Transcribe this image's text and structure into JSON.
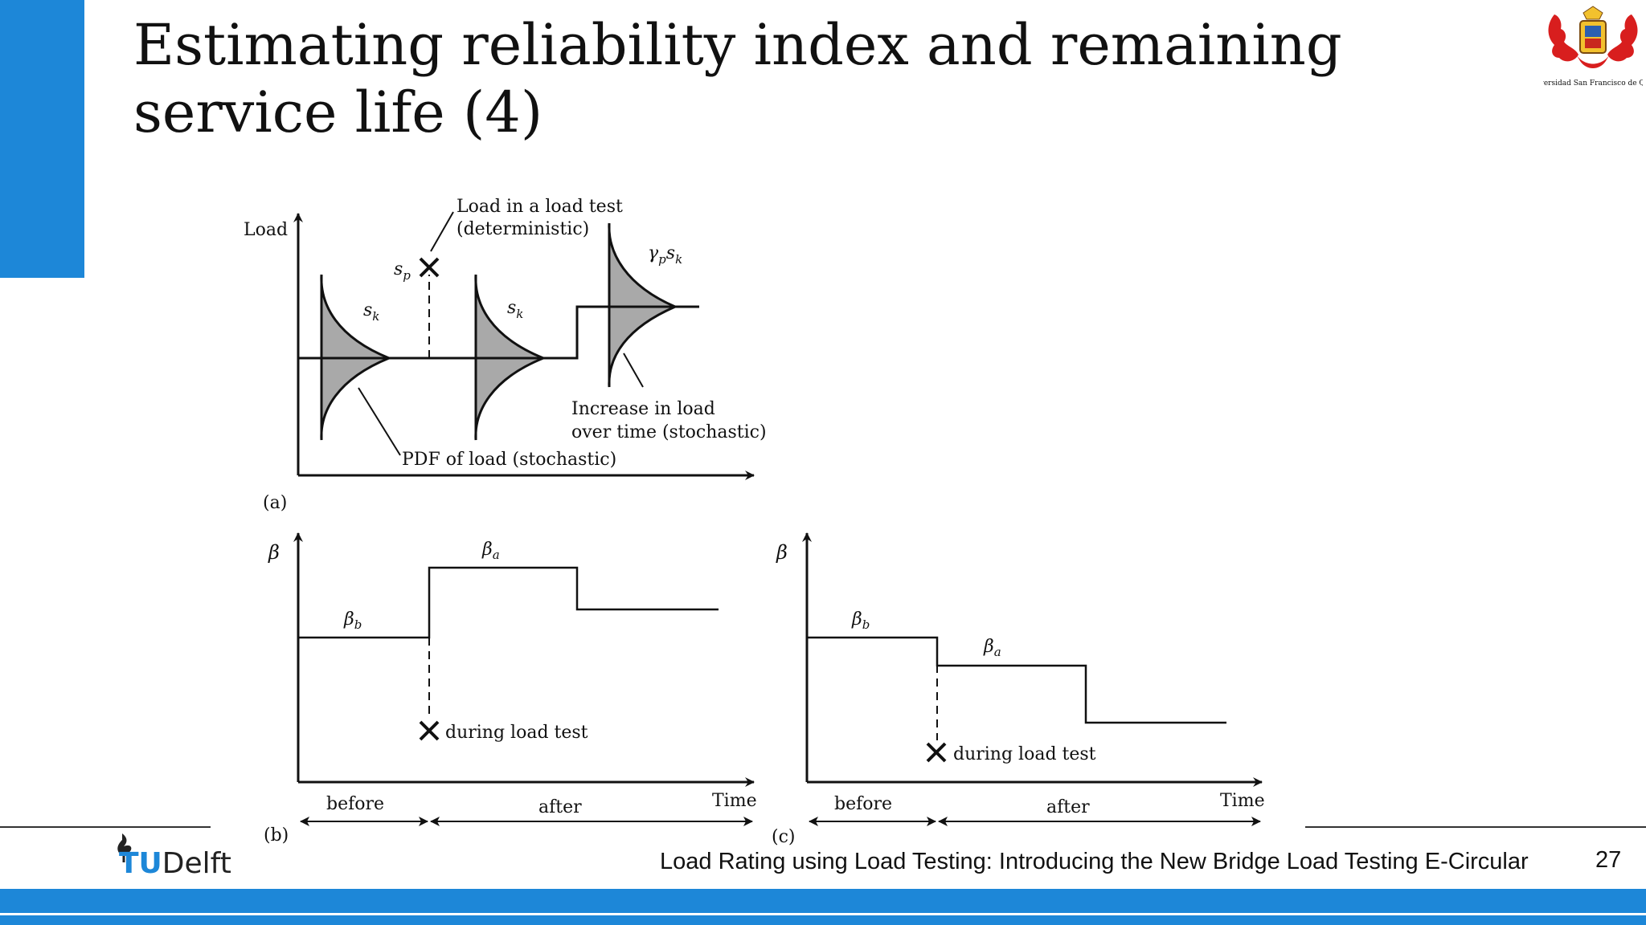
{
  "slide": {
    "title": "Estimating reliability index and remaining service life (4)",
    "footer": "Load Rating using Load Testing: Introducing the New Bridge Load Testing E-Circular",
    "page_number": "27",
    "brand": {
      "tu": "TU",
      "delft": "Delft"
    },
    "logo_caption": "Universidad San Francisco de Quito",
    "accent_color": "#1d87d8"
  },
  "diagram": {
    "panel_a": {
      "label": "(a)",
      "y_axis": "Load",
      "annotation_load_test": "Load in a load test",
      "annotation_deterministic": "(deterministic)",
      "sp": "s",
      "sp_sub": "p",
      "sk": "s",
      "sk_sub": "k",
      "gamma_label": "γ",
      "gamma_sub": "p",
      "gamma_s": "s",
      "gamma_s_sub": "k",
      "increase_1": "Increase in load",
      "increase_2": "over time (stochastic)",
      "pdf_label": "PDF of load (stochastic)"
    },
    "panel_b": {
      "label": "(b)",
      "y_axis": "β",
      "beta_b": "β",
      "beta_b_sub": "b",
      "beta_a": "β",
      "beta_a_sub": "a",
      "test_label": "during load test",
      "x_axis": "Time",
      "before": "before",
      "after": "after"
    },
    "panel_c": {
      "label": "(c)",
      "y_axis": "β",
      "beta_b": "β",
      "beta_b_sub": "b",
      "beta_a": "β",
      "beta_a_sub": "a",
      "test_label": "during load test",
      "x_axis": "Time",
      "before": "before",
      "after": "after"
    }
  }
}
